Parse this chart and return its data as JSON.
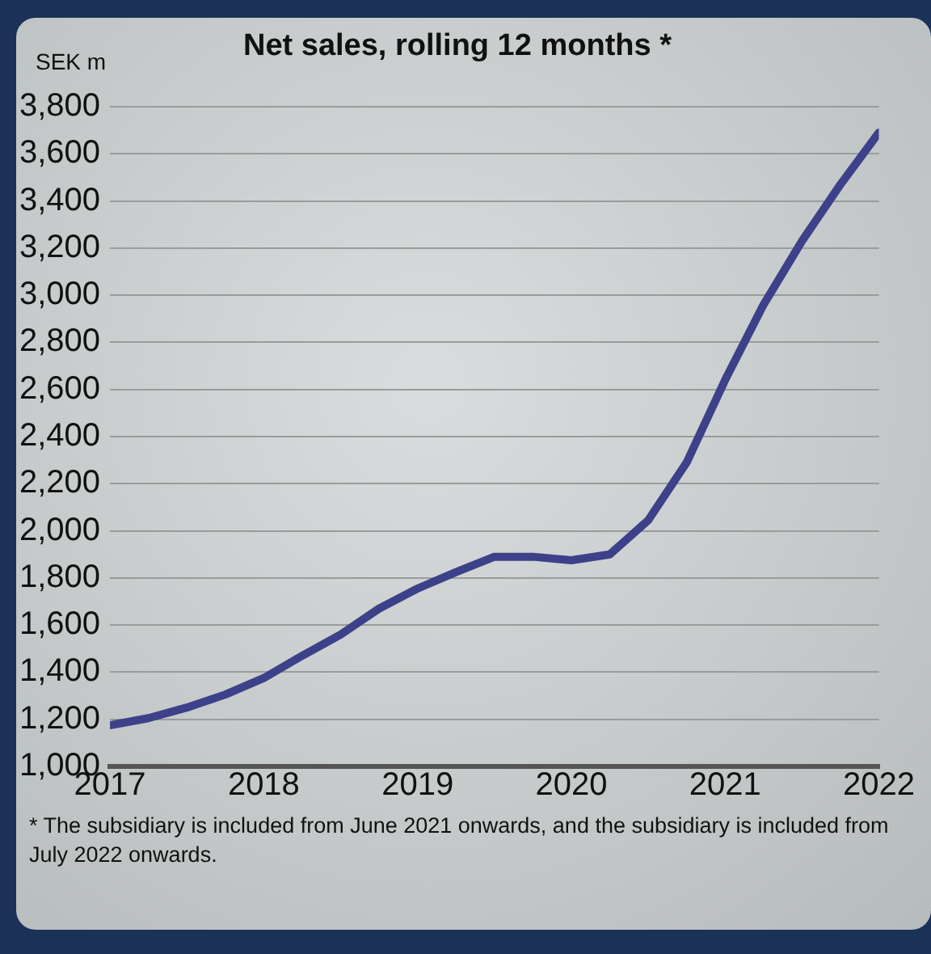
{
  "chart_data": {
    "type": "line",
    "title": "Net sales, rolling 12 months *",
    "ylabel": "SEK m",
    "x": [
      2017,
      2017.25,
      2017.5,
      2017.75,
      2018,
      2018.25,
      2018.5,
      2018.75,
      2019,
      2019.25,
      2019.5,
      2019.75,
      2020,
      2020.25,
      2020.5,
      2020.75,
      2021,
      2021.25,
      2021.5,
      2021.75,
      2022
    ],
    "series": [
      {
        "color": "#3d418a",
        "values": [
          1175,
          1205,
          1250,
          1305,
          1375,
          1470,
          1560,
          1670,
          1755,
          1825,
          1890,
          1890,
          1875,
          1900,
          2045,
          2290,
          2640,
          2960,
          3230,
          3470,
          3690
        ]
      }
    ],
    "xlim": [
      2017,
      2022
    ],
    "xticks": [
      2017,
      2018,
      2019,
      2020,
      2021,
      2022
    ],
    "ylim": [
      1000,
      3800
    ],
    "yticks": [
      {
        "value": 1000,
        "label": "1,000"
      },
      {
        "value": 1200,
        "label": "1,200"
      },
      {
        "value": 1400,
        "label": "1,400"
      },
      {
        "value": 1600,
        "label": "1,600"
      },
      {
        "value": 1800,
        "label": "1,800"
      },
      {
        "value": 2000,
        "label": "2,000"
      },
      {
        "value": 2200,
        "label": "2,200"
      },
      {
        "value": 2400,
        "label": "2,400"
      },
      {
        "value": 2600,
        "label": "2,600"
      },
      {
        "value": 2800,
        "label": "2,800"
      },
      {
        "value": 3000,
        "label": "3,000"
      },
      {
        "value": 3200,
        "label": "3,200"
      },
      {
        "value": 3400,
        "label": "3,400"
      },
      {
        "value": 3600,
        "label": "3,600"
      },
      {
        "value": 3800,
        "label": "3,800"
      }
    ],
    "grid": "y",
    "marker": "none",
    "line_style": "solid",
    "legend": false,
    "annotations": [
      "* The subsidiary is included from June 2021 onwards, and the subsidiary is included from July 2022 onwards."
    ]
  }
}
